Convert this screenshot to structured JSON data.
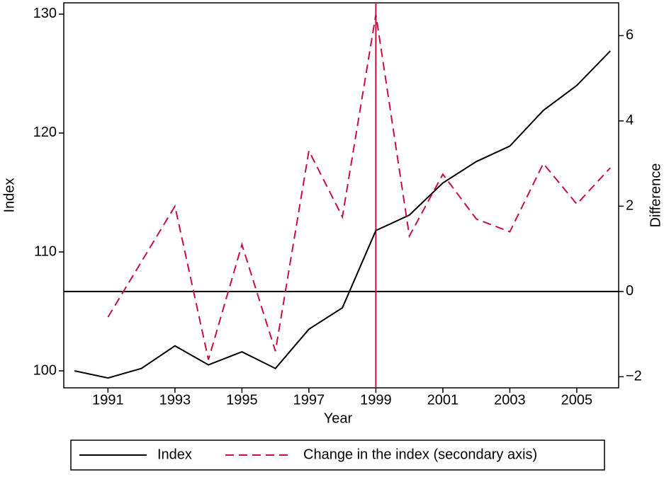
{
  "chart_data": {
    "type": "line",
    "xlabel": "Year",
    "ylabel": "Index",
    "y2label": "Difference",
    "x": [
      1990,
      1991,
      1992,
      1993,
      1994,
      1995,
      1996,
      1997,
      1998,
      1999,
      2000,
      2001,
      2002,
      2003,
      2004,
      2005,
      2006
    ],
    "series": [
      {
        "name": "Index",
        "color": "#000000",
        "linestyle": "solid",
        "axis": "y",
        "values": [
          100.0,
          99.4,
          100.2,
          102.1,
          100.5,
          101.6,
          100.2,
          103.5,
          105.3,
          111.8,
          113.1,
          115.8,
          117.6,
          118.9,
          121.9,
          124.0,
          126.9
        ]
      },
      {
        "name": "Change in the index (secondary axis)",
        "color": "#c8103e",
        "linestyle": "dashed",
        "axis": "y2",
        "values": [
          null,
          -0.6,
          0.7,
          2.0,
          -1.6,
          1.1,
          -1.4,
          3.3,
          1.75,
          6.5,
          1.3,
          2.75,
          1.7,
          1.4,
          3.0,
          2.05,
          2.9
        ]
      }
    ],
    "xlim": [
      1989.68,
      2006.25
    ],
    "xticks": [
      1991,
      1993,
      1995,
      1997,
      1999,
      2001,
      2003,
      2005
    ],
    "ylim": [
      98.57,
      130.95
    ],
    "yticks": [
      100,
      110,
      120,
      130
    ],
    "y2lim": [
      -2.26,
      6.77
    ],
    "y2ticks": [
      {
        "value": -2,
        "label": "−2"
      },
      0,
      2,
      4,
      6
    ],
    "vline": {
      "x": 1999,
      "color": "#c8103e"
    },
    "hline": {
      "y2": 0,
      "color": "#000000"
    },
    "legend": "bottom"
  }
}
